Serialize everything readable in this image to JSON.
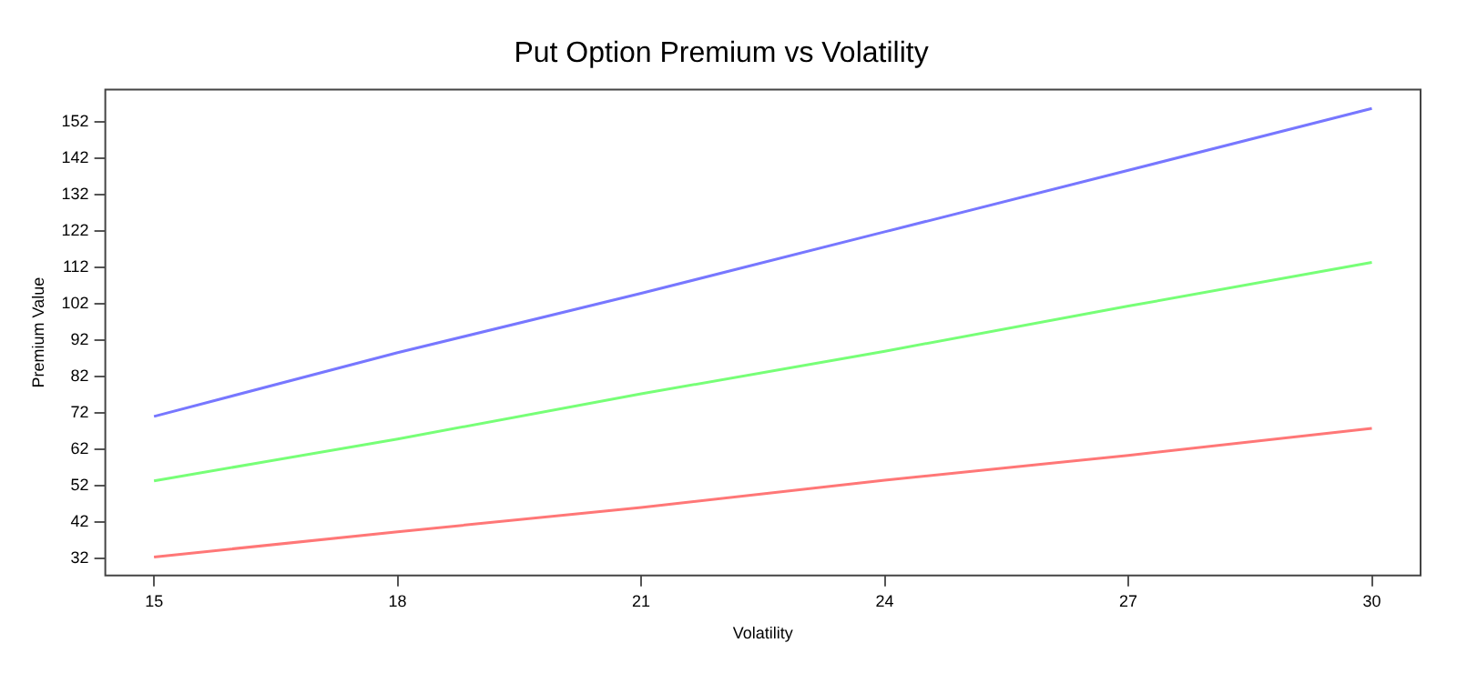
{
  "chart_data": {
    "type": "line",
    "title": "Put Option Premium vs Volatility",
    "xlabel": "Volatility",
    "ylabel": "Premium Value",
    "x": [
      15,
      18,
      21,
      24,
      27,
      30
    ],
    "series": [
      {
        "color": "#7777ff",
        "values": [
          71.1,
          88.6,
          104.9,
          121.8,
          138.7,
          155.7
        ]
      },
      {
        "color": "#77ff77",
        "values": [
          53.4,
          64.9,
          77.3,
          89.0,
          101.4,
          113.4
        ]
      },
      {
        "color": "#ff7777",
        "values": [
          32.5,
          39.4,
          46.1,
          53.6,
          60.4,
          67.8
        ]
      }
    ],
    "xlim": [
      14.4,
      30.6
    ],
    "xticks": [
      15,
      18,
      21,
      24,
      27,
      30
    ],
    "ylim": [
      27.4,
      160.9
    ],
    "yticks": [
      32,
      42,
      52,
      62,
      72,
      82,
      92,
      102,
      112,
      122,
      132,
      142,
      152
    ],
    "grid": false,
    "legend": false,
    "marker": "none",
    "line_style": "solid"
  }
}
